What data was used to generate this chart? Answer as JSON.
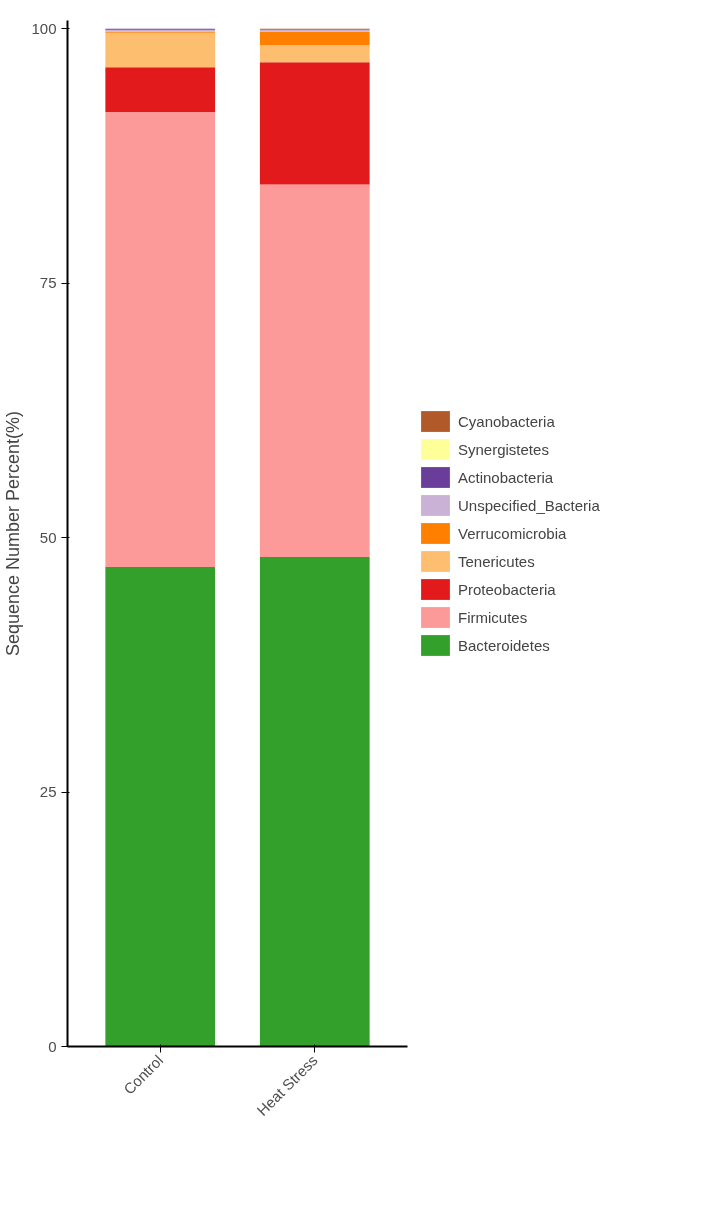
{
  "chart_data": {
    "type": "bar",
    "stacked": true,
    "ylabel": "Sequence Number Percent(%)",
    "categories": [
      "Control",
      "Heat Stress"
    ],
    "series": [
      {
        "name": "Bacteroidetes",
        "color": "#33a02c",
        "values": [
          47.1,
          48.1
        ]
      },
      {
        "name": "Firmicutes",
        "color": "#fb9a99",
        "values": [
          44.7,
          36.6
        ]
      },
      {
        "name": "Proteobacteria",
        "color": "#e31a1c",
        "values": [
          4.4,
          12.0
        ]
      },
      {
        "name": "Tenericutes",
        "color": "#fdbf6f",
        "values": [
          3.4,
          1.7
        ]
      },
      {
        "name": "Verrucomicrobia",
        "color": "#ff7f00",
        "values": [
          0.1,
          1.3
        ]
      },
      {
        "name": "Unspecified_Bacteria",
        "color": "#cab2d6",
        "values": [
          0.2,
          0.2
        ]
      },
      {
        "name": "Actinobacteria",
        "color": "#6a3d9a",
        "values": [
          0.1,
          0.0
        ]
      },
      {
        "name": "Synergistetes",
        "color": "#ffff99",
        "values": [
          0.0,
          0.0
        ]
      },
      {
        "name": "Cyanobacteria",
        "color": "#b15928",
        "values": [
          0.0,
          0.1
        ]
      }
    ],
    "ylim": [
      0,
      100.8
    ],
    "yticks": [
      0,
      25,
      50,
      75,
      100
    ],
    "grid": false,
    "legend": "right"
  }
}
